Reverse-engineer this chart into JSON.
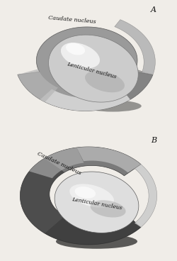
{
  "bg_color": "#f0ede8",
  "panel_A_label": "A",
  "panel_B_label": "B",
  "caudate_label": "Caudate nucleus",
  "lenticular_label": "Lenticular nucleus",
  "fig_width": 2.5,
  "fig_height": 3.68,
  "dpi": 100,
  "c1": "#1a1a1a",
  "c2": "#3a3a3a",
  "c3": "#5a5a5a",
  "c4": "#7a7a7a",
  "c5": "#9a9a9a",
  "c6": "#b5b5b5",
  "c7": "#cccccc",
  "c8": "#dedede",
  "c9": "#ebebeb",
  "c10": "#f5f5f5"
}
